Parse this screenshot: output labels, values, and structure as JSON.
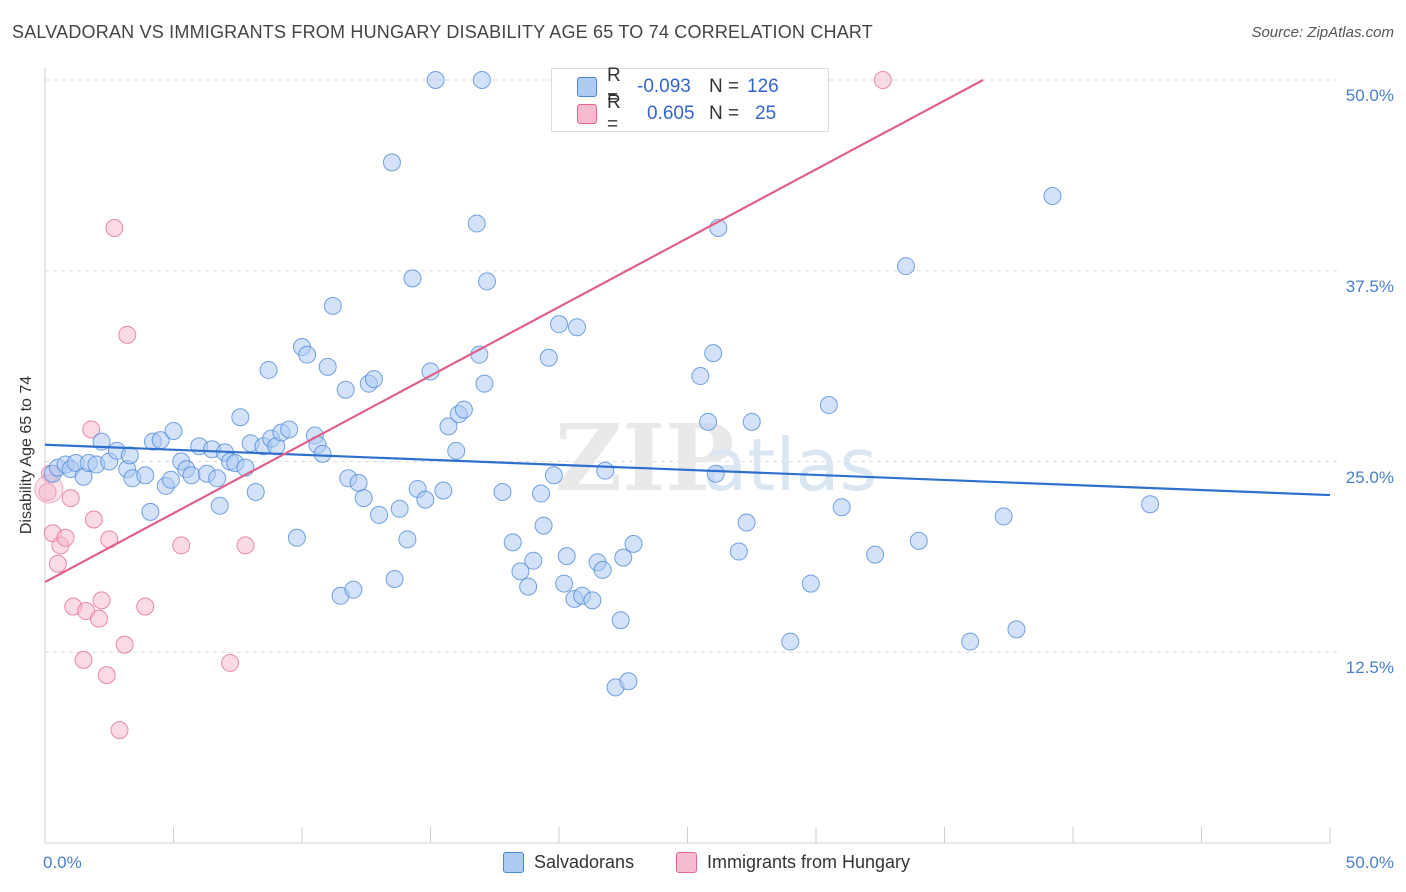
{
  "title": "SALVADORAN VS IMMIGRANTS FROM HUNGARY DISABILITY AGE 65 TO 74 CORRELATION CHART",
  "source": "Source: ZipAtlas.com",
  "watermark": {
    "zip": "ZIP",
    "atlas": "atlas"
  },
  "colors": {
    "blue": "#4a86d8",
    "blue_fill": "#aecbf2",
    "pink": "#e06890",
    "pink_fill": "#f6bccd",
    "tick": "#4a7fc7"
  },
  "legend_top": [
    {
      "r_label": "R =",
      "r_value": "-0.093",
      "n_label": "N =",
      "n_value": "126"
    },
    {
      "r_label": "R =",
      "r_value": "0.605",
      "n_label": "N =",
      "n_value": "25"
    }
  ],
  "legend_bottom": [
    "Salvadorans",
    "Immigrants from Hungary"
  ],
  "chart_data": {
    "type": "scatter",
    "title": "SALVADORAN VS IMMIGRANTS FROM HUNGARY DISABILITY AGE 65 TO 74 CORRELATION CHART",
    "xlabel": "",
    "ylabel": "Disability Age 65 to 74",
    "xlim": [
      0,
      50
    ],
    "ylim": [
      0,
      50
    ],
    "x_tick_labels": [
      "0.0%",
      "50.0%"
    ],
    "y_ticks": [
      12.5,
      25.0,
      37.5,
      50.0
    ],
    "y_tick_labels": [
      "12.5%",
      "25.0%",
      "37.5%",
      "50.0%"
    ],
    "grid": "horizontal dashed",
    "legend_placement": "top-center",
    "series": [
      {
        "name": "Salvadorans",
        "R": -0.093,
        "N": 126,
        "trend": {
          "x": [
            0,
            50
          ],
          "y": [
            26.1,
            22.8
          ]
        },
        "points": [
          [
            0.3,
            24.2
          ],
          [
            0.5,
            24.6
          ],
          [
            0.8,
            24.8
          ],
          [
            1.0,
            24.5
          ],
          [
            1.2,
            24.9
          ],
          [
            1.5,
            24.0
          ],
          [
            1.7,
            24.9
          ],
          [
            2.0,
            24.8
          ],
          [
            2.2,
            26.3
          ],
          [
            2.5,
            25.0
          ],
          [
            2.8,
            25.7
          ],
          [
            3.2,
            24.5
          ],
          [
            3.3,
            25.4
          ],
          [
            3.4,
            23.9
          ],
          [
            3.9,
            24.1
          ],
          [
            4.1,
            21.7
          ],
          [
            4.2,
            26.3
          ],
          [
            4.5,
            26.4
          ],
          [
            4.7,
            23.4
          ],
          [
            4.9,
            23.8
          ],
          [
            5.0,
            27.0
          ],
          [
            5.3,
            25.0
          ],
          [
            5.5,
            24.5
          ],
          [
            5.7,
            24.1
          ],
          [
            6.0,
            26.0
          ],
          [
            6.3,
            24.2
          ],
          [
            6.5,
            25.8
          ],
          [
            6.7,
            23.9
          ],
          [
            6.8,
            22.1
          ],
          [
            7.0,
            25.6
          ],
          [
            7.2,
            25.0
          ],
          [
            7.4,
            24.9
          ],
          [
            7.6,
            27.9
          ],
          [
            7.8,
            24.6
          ],
          [
            8.0,
            26.2
          ],
          [
            8.2,
            23.0
          ],
          [
            8.5,
            26.0
          ],
          [
            8.7,
            31.0
          ],
          [
            8.8,
            26.5
          ],
          [
            9.0,
            26.0
          ],
          [
            9.2,
            26.9
          ],
          [
            9.5,
            27.1
          ],
          [
            9.8,
            20.0
          ],
          [
            10.0,
            32.5
          ],
          [
            10.2,
            32.0
          ],
          [
            10.5,
            26.7
          ],
          [
            10.6,
            26.1
          ],
          [
            10.8,
            25.5
          ],
          [
            11.0,
            31.2
          ],
          [
            11.2,
            35.2
          ],
          [
            11.5,
            16.2
          ],
          [
            11.7,
            29.7
          ],
          [
            11.8,
            23.9
          ],
          [
            12.0,
            16.6
          ],
          [
            12.2,
            23.6
          ],
          [
            12.4,
            22.6
          ],
          [
            12.6,
            30.1
          ],
          [
            12.8,
            30.4
          ],
          [
            13.0,
            21.5
          ],
          [
            13.5,
            44.6
          ],
          [
            13.6,
            17.3
          ],
          [
            13.8,
            21.9
          ],
          [
            14.1,
            19.9
          ],
          [
            14.3,
            37.0
          ],
          [
            14.5,
            23.2
          ],
          [
            14.8,
            22.5
          ],
          [
            15.0,
            30.9
          ],
          [
            15.5,
            23.1
          ],
          [
            15.7,
            27.3
          ],
          [
            16.0,
            25.7
          ],
          [
            16.1,
            28.1
          ],
          [
            16.3,
            28.4
          ],
          [
            16.8,
            40.6
          ],
          [
            16.9,
            32.0
          ],
          [
            17.1,
            30.1
          ],
          [
            17.2,
            36.8
          ],
          [
            17.8,
            23.0
          ],
          [
            18.2,
            19.7
          ],
          [
            18.5,
            17.8
          ],
          [
            18.8,
            16.8
          ],
          [
            19.0,
            18.5
          ],
          [
            19.3,
            22.9
          ],
          [
            19.4,
            20.8
          ],
          [
            19.6,
            31.8
          ],
          [
            19.8,
            24.1
          ],
          [
            20.0,
            34.0
          ],
          [
            20.2,
            17.0
          ],
          [
            20.3,
            18.8
          ],
          [
            20.6,
            16.0
          ],
          [
            20.7,
            33.8
          ],
          [
            20.9,
            16.2
          ],
          [
            21.3,
            15.9
          ],
          [
            21.5,
            18.4
          ],
          [
            21.7,
            17.9
          ],
          [
            21.8,
            24.4
          ],
          [
            22.2,
            10.2
          ],
          [
            22.4,
            14.6
          ],
          [
            22.5,
            18.7
          ],
          [
            22.7,
            10.6
          ],
          [
            22.9,
            19.6
          ],
          [
            25.0,
            49.8
          ],
          [
            25.5,
            30.6
          ],
          [
            25.8,
            27.6
          ],
          [
            26.0,
            32.1
          ],
          [
            26.1,
            24.2
          ],
          [
            26.2,
            40.3
          ],
          [
            27.0,
            19.1
          ],
          [
            27.3,
            21.0
          ],
          [
            27.5,
            27.6
          ],
          [
            29.0,
            13.2
          ],
          [
            29.8,
            17.0
          ],
          [
            30.5,
            28.7
          ],
          [
            31.0,
            22.0
          ],
          [
            32.3,
            18.9
          ],
          [
            33.5,
            37.8
          ],
          [
            34.0,
            19.8
          ],
          [
            36.0,
            13.2
          ],
          [
            37.3,
            21.4
          ],
          [
            37.8,
            14.0
          ],
          [
            39.2,
            42.4
          ],
          [
            43.0,
            22.2
          ],
          [
            15.2,
            50.0
          ],
          [
            17.0,
            50.0
          ]
        ]
      },
      {
        "name": "Immigrants from Hungary",
        "R": 0.605,
        "N": 25,
        "trend": {
          "x": [
            0,
            36.5
          ],
          "y": [
            17.1,
            50.0
          ]
        },
        "points": [
          [
            0.1,
            23.0
          ],
          [
            0.3,
            20.3
          ],
          [
            0.5,
            18.3
          ],
          [
            0.6,
            19.5
          ],
          [
            0.8,
            20.0
          ],
          [
            1.0,
            22.6
          ],
          [
            1.1,
            15.5
          ],
          [
            1.5,
            12.0
          ],
          [
            1.6,
            15.2
          ],
          [
            1.8,
            27.1
          ],
          [
            1.9,
            21.2
          ],
          [
            2.1,
            14.7
          ],
          [
            2.2,
            15.9
          ],
          [
            2.4,
            11.0
          ],
          [
            2.5,
            19.9
          ],
          [
            2.7,
            40.3
          ],
          [
            2.9,
            7.4
          ],
          [
            3.1,
            13.0
          ],
          [
            3.2,
            33.3
          ],
          [
            3.9,
            15.5
          ],
          [
            5.3,
            19.5
          ],
          [
            7.2,
            11.8
          ],
          [
            7.8,
            19.5
          ],
          [
            32.6,
            50.0
          ],
          [
            0.2,
            24.2
          ]
        ]
      }
    ]
  }
}
